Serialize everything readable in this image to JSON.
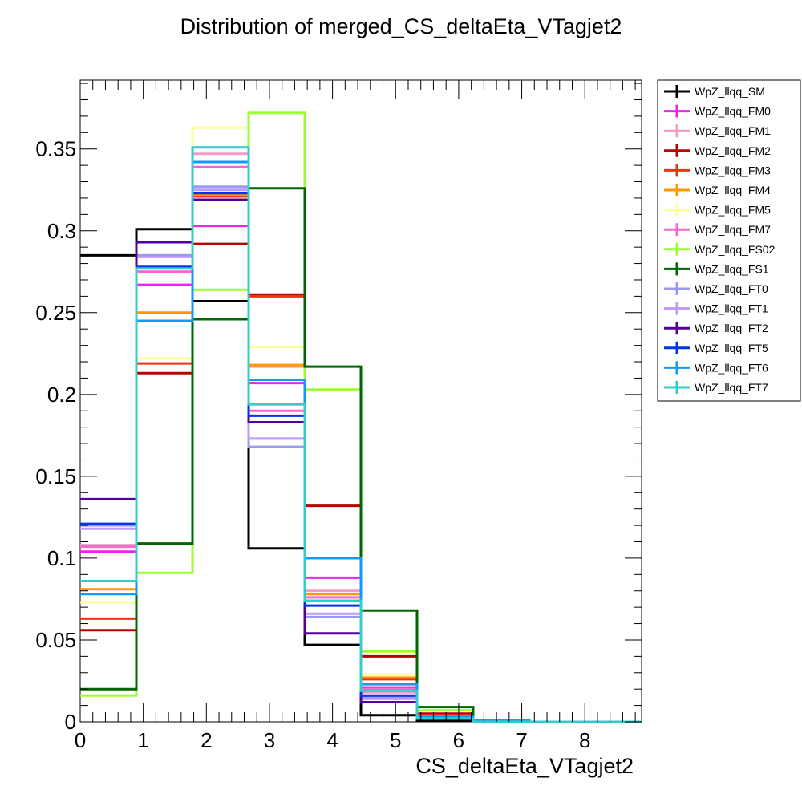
{
  "chart_data": {
    "type": "histogram",
    "title": "Distribution of merged_CS_deltaEta_VTagjet2",
    "xlabel": "CS_deltaEta_VTagjet2",
    "ylabel": "",
    "xlim": [
      0,
      8.9
    ],
    "ylim": [
      0,
      0.392
    ],
    "bin_edges": [
      0,
      0.89,
      1.78,
      2.67,
      3.56,
      4.45,
      5.34,
      6.23,
      7.12,
      8.01,
      8.9
    ],
    "x_ticks": [
      "0",
      "1",
      "2",
      "3",
      "4",
      "5",
      "6",
      "7",
      "8"
    ],
    "y_ticks": [
      "0",
      "0.05",
      "0.1",
      "0.15",
      "0.2",
      "0.25",
      "0.3",
      "0.35"
    ],
    "legend_position": "top-right",
    "series": [
      {
        "name": "WpZ_llqq_SM",
        "color": "#000000",
        "values": [
          0.285,
          0.301,
          0.257,
          0.106,
          0.047,
          0.004,
          0.001,
          0.0,
          0.0,
          0.0
        ]
      },
      {
        "name": "WpZ_llqq_FM0",
        "color": "#ee22ee",
        "values": [
          0.104,
          0.267,
          0.303,
          0.207,
          0.088,
          0.021,
          0.003,
          0.001,
          0.0,
          0.0
        ]
      },
      {
        "name": "WpZ_llqq_FM1",
        "color": "#f49ac8",
        "values": [
          0.108,
          0.275,
          0.347,
          0.217,
          0.08,
          0.018,
          0.002,
          0.0,
          0.0,
          0.0
        ]
      },
      {
        "name": "WpZ_llqq_FM2",
        "color": "#bb0000",
        "values": [
          0.056,
          0.213,
          0.292,
          0.261,
          0.132,
          0.04,
          0.005,
          0.001,
          0.0,
          0.0
        ]
      },
      {
        "name": "WpZ_llqq_FM3",
        "color": "#ee3311",
        "values": [
          0.063,
          0.219,
          0.321,
          0.26,
          0.1,
          0.026,
          0.004,
          0.001,
          0.0,
          0.0
        ]
      },
      {
        "name": "WpZ_llqq_FM4",
        "color": "#ff9900",
        "values": [
          0.081,
          0.25,
          0.322,
          0.218,
          0.078,
          0.027,
          0.003,
          0.001,
          0.0,
          0.0
        ]
      },
      {
        "name": "WpZ_llqq_FM5",
        "color": "#ffff99",
        "values": [
          0.073,
          0.222,
          0.363,
          0.229,
          0.076,
          0.029,
          0.003,
          0.001,
          0.0,
          0.0
        ]
      },
      {
        "name": "WpZ_llqq_FM7",
        "color": "#ff66cc",
        "values": [
          0.107,
          0.275,
          0.339,
          0.19,
          0.076,
          0.02,
          0.003,
          0.001,
          0.0,
          0.0
        ]
      },
      {
        "name": "WpZ_llqq_FS02",
        "color": "#99ff33",
        "values": [
          0.016,
          0.091,
          0.264,
          0.372,
          0.203,
          0.043,
          0.007,
          0.001,
          0.0,
          0.0
        ]
      },
      {
        "name": "WpZ_llqq_FS1",
        "color": "#006600",
        "values": [
          0.02,
          0.109,
          0.246,
          0.326,
          0.217,
          0.068,
          0.009,
          0.001,
          0.0,
          0.0
        ]
      },
      {
        "name": "WpZ_llqq_FT0",
        "color": "#9999ee",
        "values": [
          0.12,
          0.285,
          0.327,
          0.168,
          0.064,
          0.015,
          0.002,
          0.0,
          0.0,
          0.0
        ]
      },
      {
        "name": "WpZ_llqq_FT1",
        "color": "#bb99ff",
        "values": [
          0.118,
          0.284,
          0.325,
          0.173,
          0.066,
          0.014,
          0.002,
          0.0,
          0.0,
          0.0
        ]
      },
      {
        "name": "WpZ_llqq_FT2",
        "color": "#550099",
        "values": [
          0.136,
          0.293,
          0.319,
          0.183,
          0.054,
          0.012,
          0.002,
          0.0,
          0.0,
          0.0
        ]
      },
      {
        "name": "WpZ_llqq_FT5",
        "color": "#0033ee",
        "values": [
          0.121,
          0.278,
          0.323,
          0.187,
          0.071,
          0.016,
          0.002,
          0.0,
          0.0,
          0.0
        ]
      },
      {
        "name": "WpZ_llqq_FT6",
        "color": "#1199ff",
        "values": [
          0.078,
          0.245,
          0.342,
          0.209,
          0.1,
          0.023,
          0.003,
          0.001,
          0.0,
          0.0
        ]
      },
      {
        "name": "WpZ_llqq_FT7",
        "color": "#33cccc",
        "values": [
          0.086,
          0.277,
          0.351,
          0.194,
          0.074,
          0.019,
          0.002,
          0.0,
          0.0,
          0.0
        ]
      }
    ]
  }
}
